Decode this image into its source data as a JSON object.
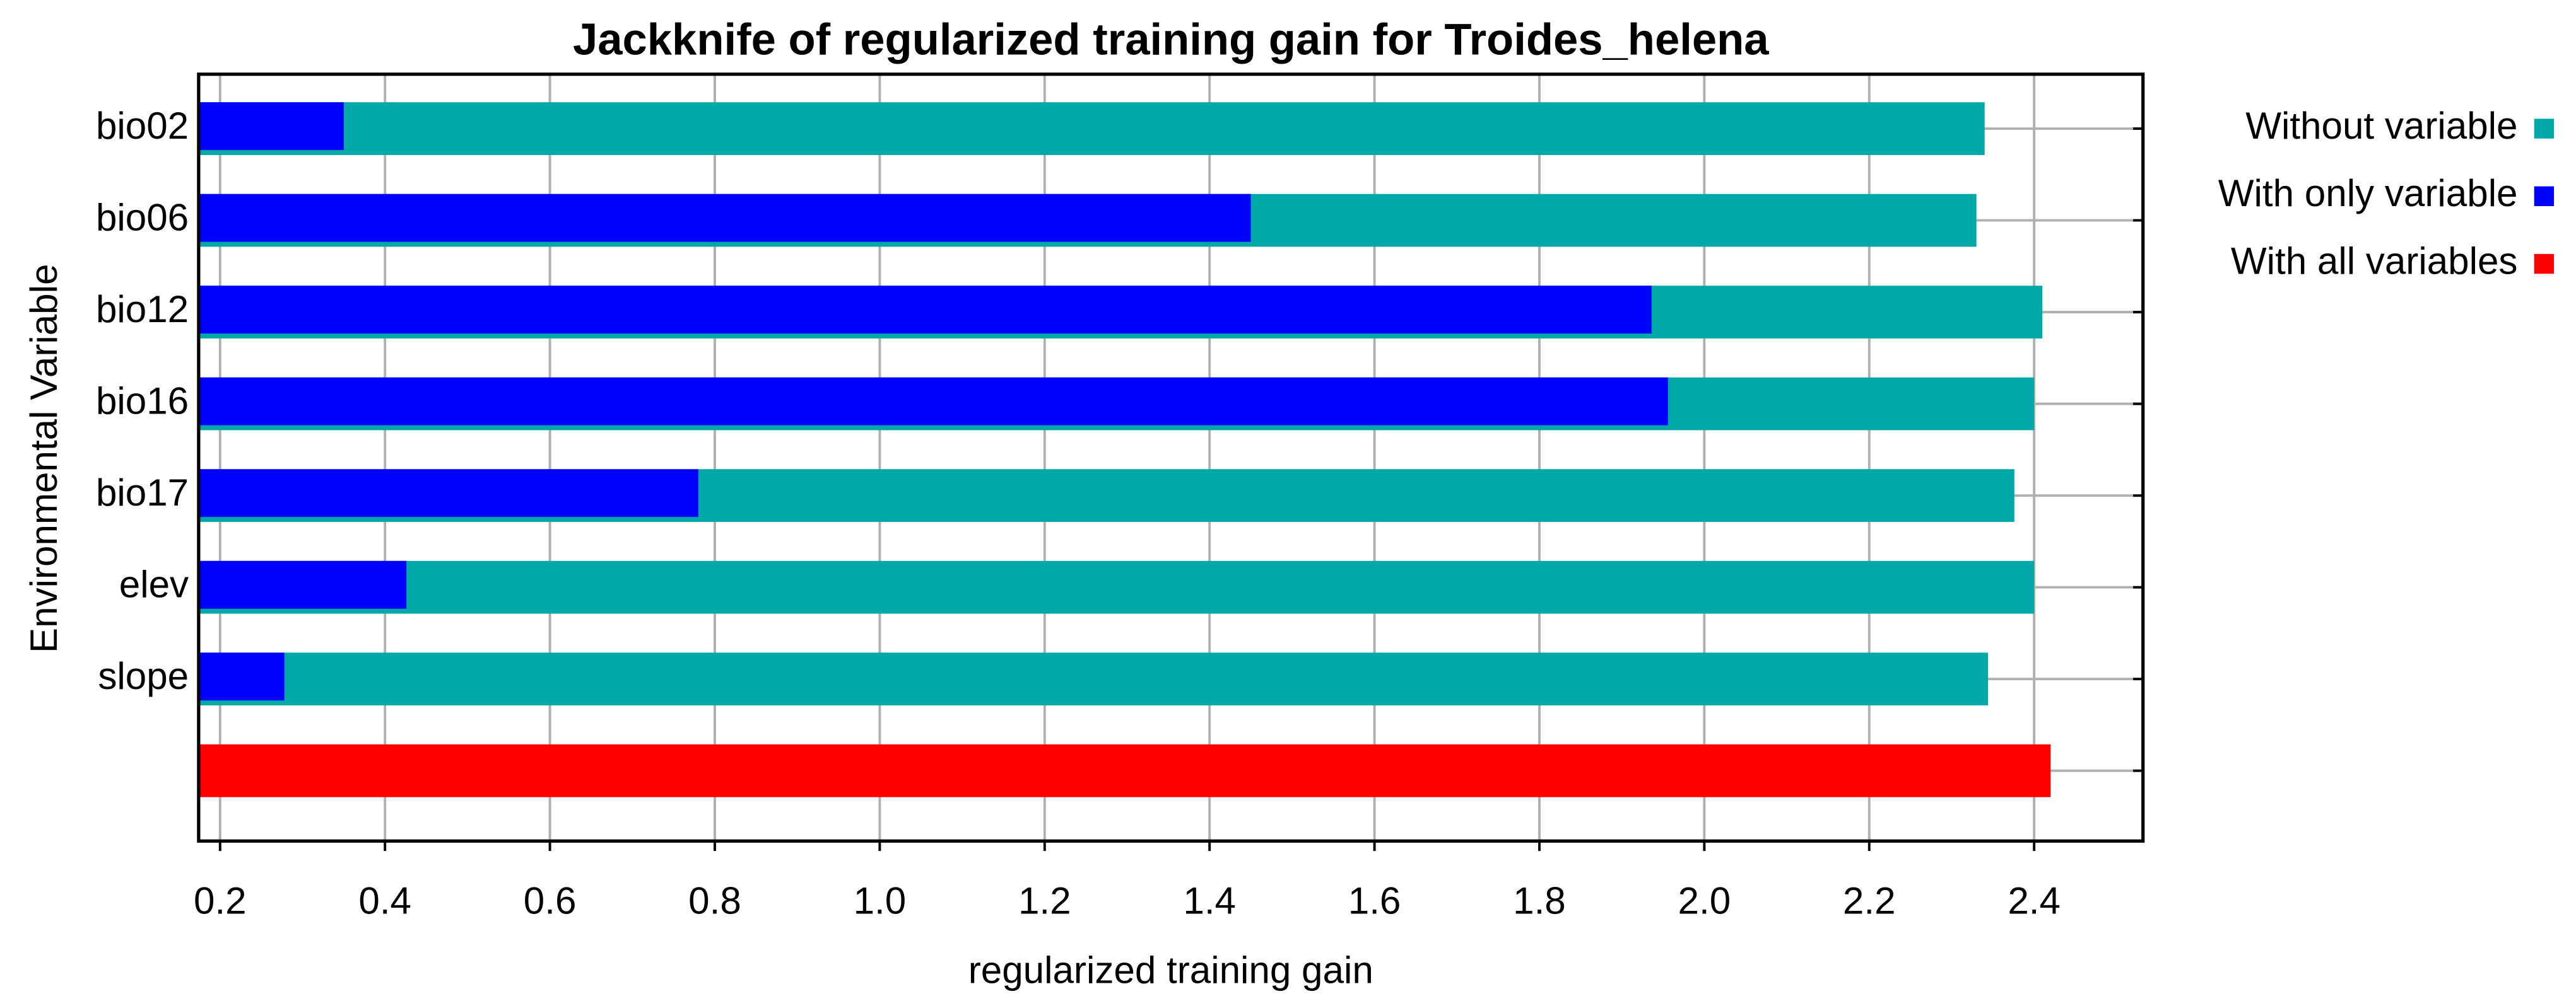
{
  "chart_data": {
    "type": "bar",
    "orientation": "horizontal",
    "title": "Jackknife of regularized training gain for Troides_helena",
    "x_label": "regularized training gain",
    "y_label": "Environmental Variable",
    "categories": [
      "bio02",
      "bio06",
      "bio12",
      "bio16",
      "bio17",
      "elev",
      "slope",
      null
    ],
    "series": [
      {
        "name": "Without variable",
        "color": "#00a8a8",
        "values": [
          2.34,
          2.33,
          2.41,
          2.4,
          2.376,
          2.4,
          2.344,
          null
        ]
      },
      {
        "name": "With only variable",
        "color": "#0000ff",
        "values": [
          0.35,
          1.45,
          1.936,
          1.956,
          0.78,
          0.426,
          0.278,
          null
        ]
      },
      {
        "name": "With all variables",
        "color": "#ff0000",
        "values": [
          null,
          null,
          null,
          null,
          null,
          null,
          null,
          2.42
        ]
      }
    ],
    "xlim": [
      0.174,
      2.532
    ],
    "xticks": [
      0.2,
      0.4,
      0.6,
      0.8,
      {
        "value": 1,
        "label": "1.0"
      },
      1.2,
      1.4,
      1.6,
      1.8,
      {
        "value": 2,
        "label": "2.0"
      },
      2.2,
      2.4
    ],
    "grid": true,
    "legend": "right"
  }
}
